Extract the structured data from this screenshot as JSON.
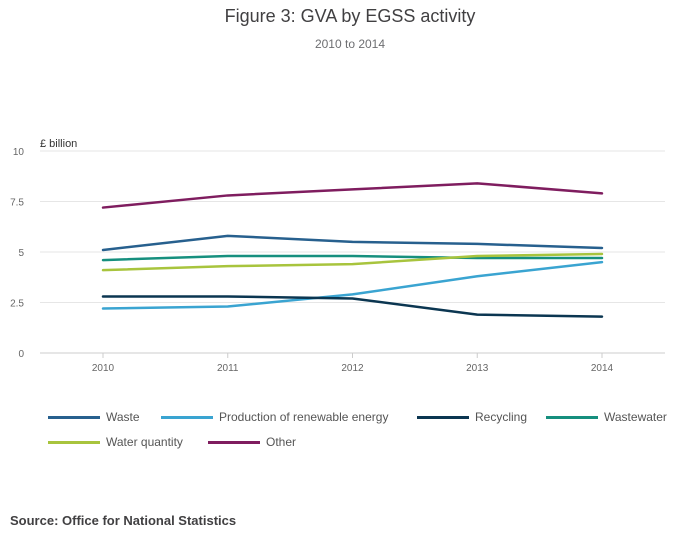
{
  "chart_data": {
    "type": "line",
    "title": "Figure 3: GVA by EGSS activity",
    "subtitle": "2010 to 2014",
    "ylabel": "£ billion",
    "xlabel": "",
    "x": [
      "2010",
      "2011",
      "2012",
      "2013",
      "2014"
    ],
    "ylim": [
      0,
      10
    ],
    "yticks": [
      0,
      2.5,
      5,
      7.5,
      10
    ],
    "ytick_labels": [
      "0",
      "2.5",
      "5",
      "7.5",
      "10"
    ],
    "grid": true,
    "legend_position": "bottom",
    "series": [
      {
        "name": "Waste",
        "color": "#27608e",
        "values": [
          5.1,
          5.8,
          5.5,
          5.4,
          5.2
        ]
      },
      {
        "name": "Production of renewable energy",
        "color": "#3aa4d1",
        "values": [
          2.2,
          2.3,
          2.9,
          3.8,
          4.5
        ]
      },
      {
        "name": "Recycling",
        "color": "#0b3651",
        "values": [
          2.8,
          2.8,
          2.7,
          1.9,
          1.8
        ]
      },
      {
        "name": "Wastewater",
        "color": "#168f7e",
        "values": [
          4.6,
          4.8,
          4.8,
          4.7,
          4.7
        ]
      },
      {
        "name": "Water quantity",
        "color": "#a8c43d",
        "values": [
          4.1,
          4.3,
          4.4,
          4.8,
          4.9
        ]
      },
      {
        "name": "Other",
        "color": "#7f1d5f",
        "values": [
          7.2,
          7.8,
          8.1,
          8.4,
          7.9
        ]
      }
    ]
  },
  "source": "Source: Office for National Statistics"
}
